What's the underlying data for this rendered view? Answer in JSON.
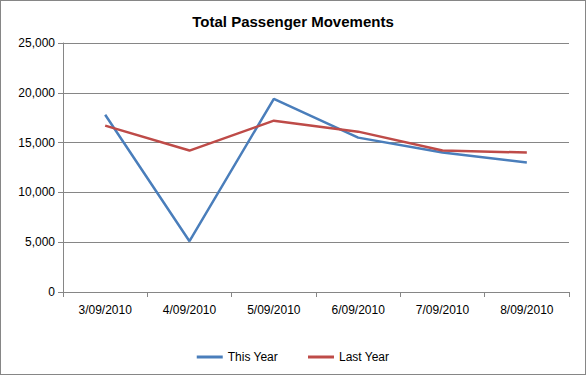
{
  "chart_data": {
    "type": "line",
    "title": "Total Passenger Movements",
    "categories": [
      "3/09/2010",
      "4/09/2010",
      "5/09/2010",
      "6/09/2010",
      "7/09/2010",
      "8/09/2010"
    ],
    "series": [
      {
        "name": "This Year",
        "color": "#4a7ebb",
        "values": [
          17800,
          5100,
          19400,
          15500,
          14000,
          13000
        ]
      },
      {
        "name": "Last Year",
        "color": "#be4b48",
        "values": [
          16700,
          14200,
          17200,
          16100,
          14200,
          14000
        ]
      }
    ],
    "ylim": [
      0,
      25000
    ],
    "yticks": [
      0,
      {
        "value": 5000,
        "label": "5,000"
      },
      {
        "value": 10000,
        "label": "10,000"
      },
      {
        "value": 15000,
        "label": "15,000"
      },
      {
        "value": 20000,
        "label": "20,000"
      },
      {
        "value": 25000,
        "label": "25,000"
      }
    ],
    "grid": true,
    "legend": "bottom",
    "marker": "none"
  }
}
